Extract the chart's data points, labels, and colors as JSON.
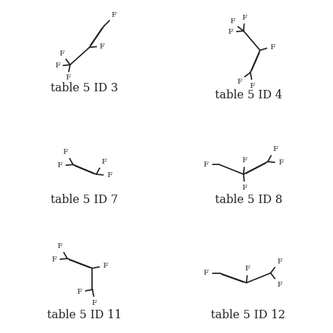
{
  "background": "#ffffff",
  "bond_color": "#222222",
  "label_color": "#222222",
  "font_size_label": 11.5,
  "font_size_atom": 7.5,
  "labels": [
    "table 5 ID 3",
    "table 5 ID 4",
    "table 5 ID 7",
    "table 5 ID 8",
    "table 5 ID 11",
    "table 5 ID 12"
  ],
  "lw": 1.3
}
